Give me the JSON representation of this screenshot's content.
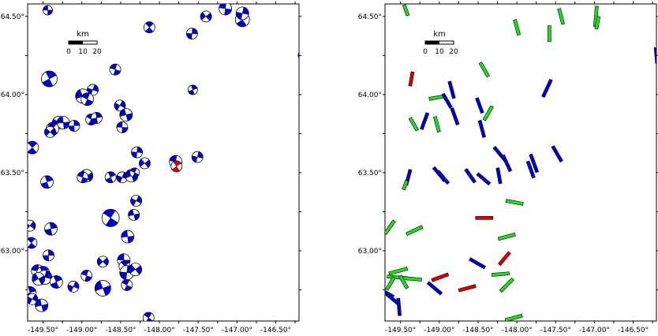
{
  "colors": {
    "blue": "#0000cc",
    "red": "#dd0000",
    "green": "#22dd22",
    "frame": "#000000"
  },
  "axes": {
    "lon_range": [
      -149.7,
      -146.2
    ],
    "lat_range": [
      62.55,
      64.58
    ],
    "x_tick_labels": [
      {
        "value": -149.5,
        "text": "-149.50°"
      },
      {
        "value": -149.0,
        "text": "-149.00°"
      },
      {
        "value": -148.5,
        "text": "-148.50°"
      },
      {
        "value": -148.0,
        "text": "-148.00°"
      },
      {
        "value": -147.5,
        "text": "-147.50°"
      },
      {
        "value": -147.0,
        "text": "-147.00°"
      },
      {
        "value": -146.5,
        "text": "-146.50°"
      }
    ],
    "y_tick_labels": [
      {
        "value": 63.0,
        "text": "63.00°"
      },
      {
        "value": 63.5,
        "text": "63.50°"
      },
      {
        "value": 64.0,
        "text": "64.00°"
      },
      {
        "value": 64.5,
        "text": "64.50°"
      }
    ]
  },
  "scalebar": {
    "unit": "km",
    "ticks": [
      "0",
      "10",
      "20"
    ]
  },
  "left_map": {
    "beachballs": [
      {
        "lon": -149.44,
        "lat": 64.54,
        "r": 6,
        "type": "blue"
      },
      {
        "lon": -148.13,
        "lat": 64.43,
        "r": 7,
        "type": "blue"
      },
      {
        "lon": -147.58,
        "lat": 64.39,
        "r": 7,
        "type": "blue"
      },
      {
        "lon": -147.4,
        "lat": 64.5,
        "r": 7,
        "type": "blue"
      },
      {
        "lon": -147.15,
        "lat": 64.55,
        "r": 8,
        "type": "blue"
      },
      {
        "lon": -146.93,
        "lat": 64.48,
        "r": 9,
        "type": "blue"
      },
      {
        "lon": -146.93,
        "lat": 64.52,
        "r": 8,
        "type": "blue"
      },
      {
        "lon": -146.15,
        "lat": 64.25,
        "r": 6,
        "type": "blue"
      },
      {
        "lon": -148.57,
        "lat": 64.16,
        "r": 7,
        "type": "blue"
      },
      {
        "lon": -149.42,
        "lat": 64.1,
        "r": 10,
        "type": "blue"
      },
      {
        "lon": -148.86,
        "lat": 64.03,
        "r": 7,
        "type": "blue"
      },
      {
        "lon": -148.99,
        "lat": 63.99,
        "r": 9,
        "type": "blue"
      },
      {
        "lon": -148.93,
        "lat": 63.97,
        "r": 8,
        "type": "blue"
      },
      {
        "lon": -147.57,
        "lat": 64.03,
        "r": 6,
        "type": "blue"
      },
      {
        "lon": -148.51,
        "lat": 63.93,
        "r": 7,
        "type": "blue"
      },
      {
        "lon": -148.43,
        "lat": 63.87,
        "r": 8,
        "type": "blue"
      },
      {
        "lon": -148.88,
        "lat": 63.84,
        "r": 7,
        "type": "blue"
      },
      {
        "lon": -148.81,
        "lat": 63.85,
        "r": 7,
        "type": "blue"
      },
      {
        "lon": -149.3,
        "lat": 63.82,
        "r": 8,
        "type": "blue"
      },
      {
        "lon": -149.24,
        "lat": 63.82,
        "r": 8,
        "type": "blue"
      },
      {
        "lon": -149.38,
        "lat": 63.78,
        "r": 8,
        "type": "blue"
      },
      {
        "lon": -149.1,
        "lat": 63.8,
        "r": 7,
        "type": "blue"
      },
      {
        "lon": -149.41,
        "lat": 63.76,
        "r": 7,
        "type": "blue"
      },
      {
        "lon": -148.48,
        "lat": 63.79,
        "r": 7,
        "type": "blue"
      },
      {
        "lon": -149.64,
        "lat": 63.66,
        "r": 8,
        "type": "blue"
      },
      {
        "lon": -148.29,
        "lat": 63.63,
        "r": 7,
        "type": "blue"
      },
      {
        "lon": -148.19,
        "lat": 63.56,
        "r": 7,
        "type": "blue"
      },
      {
        "lon": -147.79,
        "lat": 63.57,
        "r": 8,
        "type": "blue"
      },
      {
        "lon": -147.78,
        "lat": 63.54,
        "r": 7,
        "type": "red"
      },
      {
        "lon": -147.51,
        "lat": 63.6,
        "r": 7,
        "type": "blue"
      },
      {
        "lon": -148.94,
        "lat": 63.48,
        "r": 8,
        "type": "blue"
      },
      {
        "lon": -148.99,
        "lat": 63.47,
        "r": 7,
        "type": "blue"
      },
      {
        "lon": -148.63,
        "lat": 63.47,
        "r": 7,
        "type": "blue"
      },
      {
        "lon": -148.48,
        "lat": 63.47,
        "r": 7,
        "type": "blue"
      },
      {
        "lon": -148.36,
        "lat": 63.48,
        "r": 8,
        "type": "blue"
      },
      {
        "lon": -148.32,
        "lat": 63.5,
        "r": 6,
        "type": "blue"
      },
      {
        "lon": -149.45,
        "lat": 63.44,
        "r": 8,
        "type": "blue"
      },
      {
        "lon": -148.3,
        "lat": 63.32,
        "r": 7,
        "type": "blue"
      },
      {
        "lon": -148.33,
        "lat": 63.23,
        "r": 7,
        "type": "blue"
      },
      {
        "lon": -148.63,
        "lat": 63.21,
        "r": 11,
        "type": "blue"
      },
      {
        "lon": -149.4,
        "lat": 63.14,
        "r": 8,
        "type": "blue"
      },
      {
        "lon": -149.67,
        "lat": 63.16,
        "r": 7,
        "type": "blue"
      },
      {
        "lon": -148.41,
        "lat": 63.09,
        "r": 8,
        "type": "blue"
      },
      {
        "lon": -149.65,
        "lat": 63.05,
        "r": 7,
        "type": "blue"
      },
      {
        "lon": -149.43,
        "lat": 62.97,
        "r": 7,
        "type": "blue"
      },
      {
        "lon": -148.73,
        "lat": 62.93,
        "r": 7,
        "type": "blue"
      },
      {
        "lon": -148.46,
        "lat": 62.94,
        "r": 8,
        "type": "blue"
      },
      {
        "lon": -148.45,
        "lat": 62.9,
        "r": 7,
        "type": "blue"
      },
      {
        "lon": -148.42,
        "lat": 62.86,
        "r": 9,
        "type": "blue"
      },
      {
        "lon": -148.31,
        "lat": 62.88,
        "r": 8,
        "type": "blue"
      },
      {
        "lon": -149.57,
        "lat": 62.87,
        "r": 8,
        "type": "blue"
      },
      {
        "lon": -149.5,
        "lat": 62.86,
        "r": 8,
        "type": "blue"
      },
      {
        "lon": -149.48,
        "lat": 62.83,
        "r": 9,
        "type": "blue"
      },
      {
        "lon": -149.56,
        "lat": 62.82,
        "r": 8,
        "type": "blue"
      },
      {
        "lon": -148.94,
        "lat": 62.84,
        "r": 7,
        "type": "blue"
      },
      {
        "lon": -149.33,
        "lat": 62.8,
        "r": 8,
        "type": "blue"
      },
      {
        "lon": -149.11,
        "lat": 62.77,
        "r": 7,
        "type": "blue"
      },
      {
        "lon": -148.73,
        "lat": 62.76,
        "r": 10,
        "type": "blue"
      },
      {
        "lon": -148.42,
        "lat": 62.78,
        "r": 7,
        "type": "blue"
      },
      {
        "lon": -149.67,
        "lat": 62.73,
        "r": 8,
        "type": "blue"
      },
      {
        "lon": -149.64,
        "lat": 62.69,
        "r": 7,
        "type": "blue"
      },
      {
        "lon": -149.52,
        "lat": 62.65,
        "r": 8,
        "type": "blue"
      },
      {
        "lon": -148.14,
        "lat": 62.57,
        "r": 7,
        "type": "blue"
      }
    ]
  },
  "right_map": {
    "bars": [
      {
        "lon": -149.43,
        "lat": 64.54,
        "az": 160,
        "len": 14,
        "type": "green"
      },
      {
        "lon": -148.0,
        "lat": 64.43,
        "az": 165,
        "len": 20,
        "type": "green"
      },
      {
        "lon": -147.43,
        "lat": 64.5,
        "az": 165,
        "len": 20,
        "type": "green"
      },
      {
        "lon": -147.58,
        "lat": 64.39,
        "az": 0,
        "len": 20,
        "type": "green"
      },
      {
        "lon": -146.98,
        "lat": 64.5,
        "az": 5,
        "len": 26,
        "type": "green"
      },
      {
        "lon": -146.96,
        "lat": 64.46,
        "az": 10,
        "len": 16,
        "type": "green"
      },
      {
        "lon": -146.2,
        "lat": 64.25,
        "az": 175,
        "len": 20,
        "type": "blue"
      },
      {
        "lon": -148.42,
        "lat": 64.16,
        "az": 150,
        "len": 20,
        "type": "green"
      },
      {
        "lon": -149.36,
        "lat": 64.1,
        "az": 10,
        "len": 18,
        "type": "red"
      },
      {
        "lon": -148.84,
        "lat": 64.03,
        "az": 165,
        "len": 22,
        "type": "blue"
      },
      {
        "lon": -147.61,
        "lat": 64.04,
        "az": 25,
        "len": 24,
        "type": "blue"
      },
      {
        "lon": -149.04,
        "lat": 63.98,
        "az": 80,
        "len": 18,
        "type": "green"
      },
      {
        "lon": -148.9,
        "lat": 63.96,
        "az": 150,
        "len": 20,
        "type": "blue"
      },
      {
        "lon": -148.48,
        "lat": 63.93,
        "az": 160,
        "len": 20,
        "type": "blue"
      },
      {
        "lon": -148.37,
        "lat": 63.88,
        "az": 30,
        "len": 20,
        "type": "green"
      },
      {
        "lon": -148.8,
        "lat": 63.86,
        "az": 160,
        "len": 22,
        "type": "blue"
      },
      {
        "lon": -149.19,
        "lat": 63.83,
        "az": 20,
        "len": 22,
        "type": "blue"
      },
      {
        "lon": -149.33,
        "lat": 63.81,
        "az": 150,
        "len": 18,
        "type": "green"
      },
      {
        "lon": -149.03,
        "lat": 63.81,
        "az": 165,
        "len": 20,
        "type": "green"
      },
      {
        "lon": -148.45,
        "lat": 63.78,
        "az": 165,
        "len": 22,
        "type": "blue"
      },
      {
        "lon": -148.22,
        "lat": 63.62,
        "az": 140,
        "len": 22,
        "type": "blue"
      },
      {
        "lon": -148.13,
        "lat": 63.56,
        "az": 155,
        "len": 22,
        "type": "blue"
      },
      {
        "lon": -147.78,
        "lat": 63.56,
        "az": 160,
        "len": 24,
        "type": "blue"
      },
      {
        "lon": -147.48,
        "lat": 63.62,
        "az": 150,
        "len": 22,
        "type": "blue"
      },
      {
        "lon": -147.82,
        "lat": 63.52,
        "az": 160,
        "len": 22,
        "type": "blue"
      },
      {
        "lon": -149.0,
        "lat": 63.49,
        "az": 140,
        "len": 22,
        "type": "blue"
      },
      {
        "lon": -148.95,
        "lat": 63.47,
        "az": 140,
        "len": 20,
        "type": "blue"
      },
      {
        "lon": -148.6,
        "lat": 63.48,
        "az": 145,
        "len": 20,
        "type": "blue"
      },
      {
        "lon": -148.43,
        "lat": 63.46,
        "az": 130,
        "len": 20,
        "type": "blue"
      },
      {
        "lon": -148.23,
        "lat": 63.48,
        "az": 170,
        "len": 20,
        "type": "blue"
      },
      {
        "lon": -149.4,
        "lat": 63.47,
        "az": 15,
        "len": 20,
        "type": "blue"
      },
      {
        "lon": -149.44,
        "lat": 63.42,
        "az": 20,
        "len": 12,
        "type": "green"
      },
      {
        "lon": -148.03,
        "lat": 63.31,
        "az": 100,
        "len": 22,
        "type": "green"
      },
      {
        "lon": -148.42,
        "lat": 63.21,
        "az": 90,
        "len": 22,
        "type": "red"
      },
      {
        "lon": -149.64,
        "lat": 63.15,
        "az": 35,
        "len": 20,
        "type": "green"
      },
      {
        "lon": -149.32,
        "lat": 63.13,
        "az": 65,
        "len": 22,
        "type": "green"
      },
      {
        "lon": -148.13,
        "lat": 63.09,
        "az": 75,
        "len": 22,
        "type": "green"
      },
      {
        "lon": -148.16,
        "lat": 62.95,
        "az": 40,
        "len": 20,
        "type": "red"
      },
      {
        "lon": -148.51,
        "lat": 62.92,
        "az": 120,
        "len": 22,
        "type": "blue"
      },
      {
        "lon": -149.53,
        "lat": 62.87,
        "az": 75,
        "len": 24,
        "type": "green"
      },
      {
        "lon": -149.55,
        "lat": 62.83,
        "az": 95,
        "len": 24,
        "type": "green"
      },
      {
        "lon": -149.35,
        "lat": 62.82,
        "az": 95,
        "len": 24,
        "type": "green"
      },
      {
        "lon": -148.99,
        "lat": 62.83,
        "az": 70,
        "len": 22,
        "type": "red"
      },
      {
        "lon": -148.21,
        "lat": 62.85,
        "az": 85,
        "len": 22,
        "type": "green"
      },
      {
        "lon": -149.46,
        "lat": 62.8,
        "az": 150,
        "len": 18,
        "type": "green"
      },
      {
        "lon": -149.63,
        "lat": 62.79,
        "az": 30,
        "len": 18,
        "type": "green"
      },
      {
        "lon": -148.13,
        "lat": 62.78,
        "az": 45,
        "len": 22,
        "type": "green"
      },
      {
        "lon": -148.64,
        "lat": 62.76,
        "az": 75,
        "len": 22,
        "type": "red"
      },
      {
        "lon": -149.06,
        "lat": 62.76,
        "az": 130,
        "len": 22,
        "type": "blue"
      },
      {
        "lon": -149.68,
        "lat": 62.73,
        "az": 120,
        "len": 20,
        "type": "blue"
      },
      {
        "lon": -149.6,
        "lat": 62.69,
        "az": 130,
        "len": 20,
        "type": "blue"
      },
      {
        "lon": -149.52,
        "lat": 62.64,
        "az": 175,
        "len": 22,
        "type": "blue"
      },
      {
        "lon": -148.04,
        "lat": 62.57,
        "az": 75,
        "len": 22,
        "type": "green"
      }
    ]
  }
}
